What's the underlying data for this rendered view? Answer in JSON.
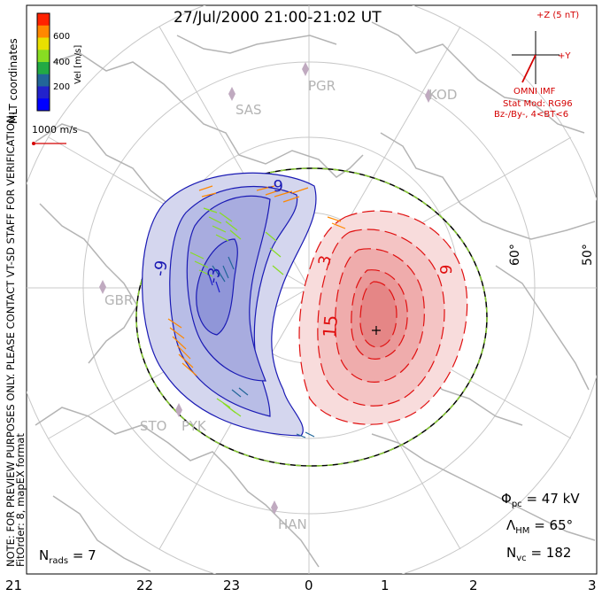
{
  "title": "27/Jul/2000  21:00-21:02 UT",
  "coordinates_label": "MLT coordinates",
  "notes": {
    "preview": "NOTE: FOR PREVIEW PURPOSES ONLY. PLEASE CONTACT VT-SD STAFF FOR VERIFICATION.",
    "fit": "FitOrder: 8, mapEX format"
  },
  "colorbar": {
    "label": "Vel [m/s]",
    "ticks": [
      "600",
      "400",
      "200"
    ],
    "colors": [
      "#ff2200",
      "#ff8800",
      "#e8e000",
      "#88dd22",
      "#22aa44",
      "#226699",
      "#2222cc",
      "#0000ff"
    ]
  },
  "speed_reference": "1000 m/s",
  "imf": {
    "z_label": "+Z (5 nT)",
    "y_label": "+Y",
    "source": "OMNI IMF",
    "model": "Stat Mod: RG96",
    "condition": "Bz-/By-, 4<BT<6"
  },
  "stations": [
    "PGR",
    "KOD",
    "SAS",
    "GBR",
    "STO",
    "PYK",
    "HAN"
  ],
  "latitude_labels": [
    "60°",
    "50°"
  ],
  "contour_labels": [
    "-9",
    "-9",
    "-3",
    "3",
    "9",
    "15"
  ],
  "stats": {
    "phi_pc_symbol": "Φ",
    "phi_pc_sub": "pc",
    "phi_pc_value": "=  47 kV",
    "hm_symbol": "Λ",
    "hm_sub": "HM",
    "hm_value": "=  65°",
    "nvc_symbol": "N",
    "nvc_sub": "vc",
    "nvc_value": "=  182",
    "nrads_symbol": "N",
    "nrads_sub": "rads",
    "nrads_value": "=  7"
  },
  "mlt_ticks": [
    "21",
    "22",
    "23",
    "0",
    "1",
    "2",
    "3"
  ],
  "colors": {
    "negative_cell": "#1a1ab4",
    "positive_cell": "#e01010",
    "boundary": "#88cc33",
    "land": "#b4b4b4",
    "grid": "#c8c8c8"
  }
}
